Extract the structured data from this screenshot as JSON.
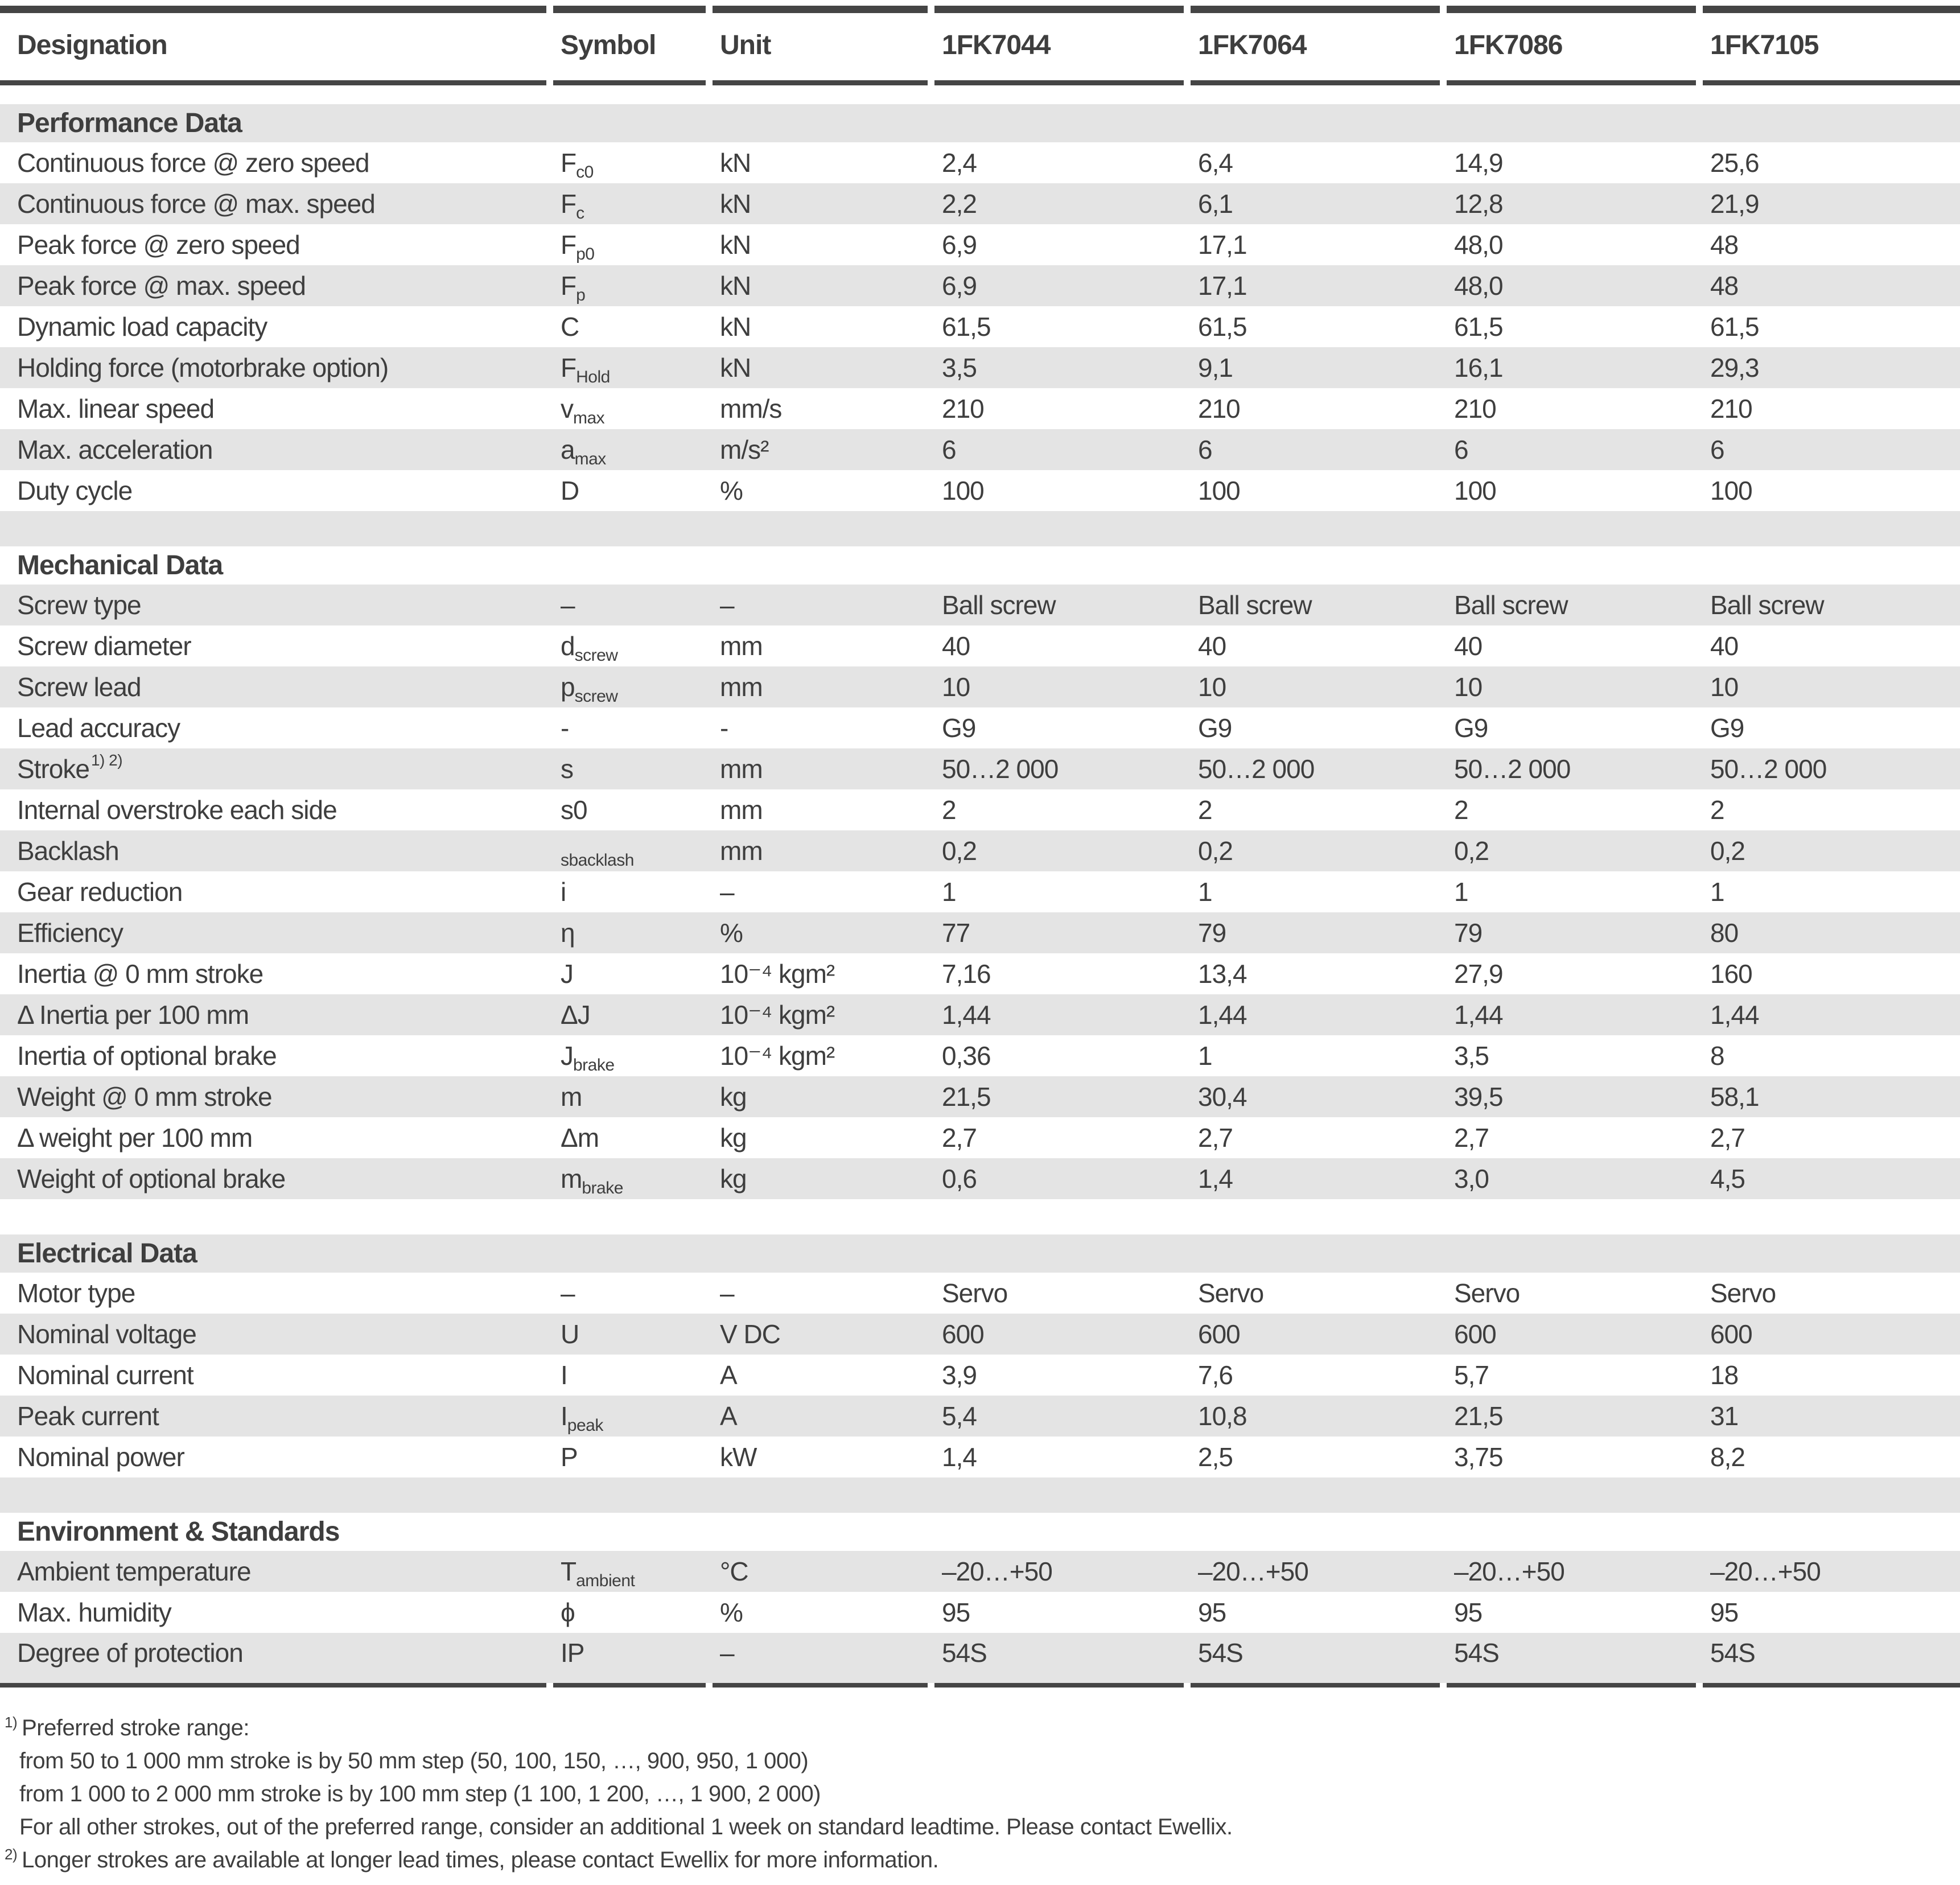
{
  "colors": {
    "rule_dark": "#454545",
    "row_stripe": "#e4e4e4",
    "text": "#3e3e3e"
  },
  "header": {
    "columns": [
      "Designation",
      "Symbol",
      "Unit",
      "1FK7044",
      "1FK7064",
      "1FK7086",
      "1FK7105"
    ]
  },
  "table": {
    "sections": [
      {
        "title": "Performance Data",
        "rows": [
          {
            "label": "Continuous force @ zero speed",
            "symbol": "F",
            "symbol_sub": "c0",
            "unit": "kN",
            "values": [
              "2,4",
              "6,4",
              "14,9",
              "25,6"
            ]
          },
          {
            "label": "Continuous force @ max. speed",
            "symbol": "F",
            "symbol_sub": "c",
            "unit": "kN",
            "values": [
              "2,2",
              "6,1",
              "12,8",
              "21,9"
            ]
          },
          {
            "label": "Peak force @ zero speed",
            "symbol": "F",
            "symbol_sub": "p0",
            "unit": "kN",
            "values": [
              "6,9",
              "17,1",
              "48,0",
              "48"
            ]
          },
          {
            "label": "Peak force @ max. speed",
            "symbol": "F",
            "symbol_sub": "p",
            "unit": "kN",
            "values": [
              "6,9",
              "17,1",
              "48,0",
              "48"
            ]
          },
          {
            "label": "Dynamic load capacity",
            "symbol": "C",
            "unit": "kN",
            "values": [
              "61,5",
              "61,5",
              "61,5",
              "61,5"
            ]
          },
          {
            "label": "Holding force (motorbrake option)",
            "symbol": "F",
            "symbol_sub": "Hold",
            "unit": "kN",
            "values": [
              "3,5",
              "9,1",
              "16,1",
              "29,3"
            ]
          },
          {
            "label": "Max. linear speed",
            "symbol": "v",
            "symbol_sub": "max",
            "unit": "mm/s",
            "values": [
              "210",
              "210",
              "210",
              "210"
            ]
          },
          {
            "label": "Max. acceleration",
            "symbol": "a",
            "symbol_sub": "max",
            "unit": "m/s²",
            "values": [
              "6",
              "6",
              "6",
              "6"
            ]
          },
          {
            "label": "Duty cycle",
            "symbol": "D",
            "unit": "%",
            "values": [
              "100",
              "100",
              "100",
              "100"
            ]
          }
        ]
      },
      {
        "title": "Mechanical Data",
        "rows": [
          {
            "label": "Screw type",
            "symbol": "–",
            "unit": "–",
            "values": [
              "Ball screw",
              "Ball screw",
              "Ball screw",
              "Ball screw"
            ]
          },
          {
            "label": "Screw diameter",
            "symbol": "d",
            "symbol_sub": "screw",
            "unit": "mm",
            "values": [
              "40",
              "40",
              "40",
              "40"
            ]
          },
          {
            "label": "Screw lead",
            "symbol": "p",
            "symbol_sub": "screw",
            "unit": "mm",
            "values": [
              "10",
              "10",
              "10",
              "10"
            ]
          },
          {
            "label": "Lead accuracy",
            "symbol": "-",
            "unit": "-",
            "values": [
              "G9",
              "G9",
              "G9",
              "G9"
            ]
          },
          {
            "label": "Stroke",
            "label_sup": "1) 2)",
            "symbol": "s",
            "unit": "mm",
            "values": [
              "50…2 000",
              "50…2 000",
              "50…2 000",
              "50…2 000"
            ]
          },
          {
            "label": "Internal overstroke each side",
            "symbol": "s0",
            "unit": "mm",
            "values": [
              "2",
              "2",
              "2",
              "2"
            ]
          },
          {
            "label": "Backlash",
            "symbol": "",
            "symbol_sub": "sbacklash",
            "unit": "mm",
            "values": [
              "0,2",
              "0,2",
              "0,2",
              "0,2"
            ]
          },
          {
            "label": "Gear reduction",
            "symbol": "i",
            "unit": "–",
            "values": [
              "1",
              "1",
              "1",
              "1"
            ]
          },
          {
            "label": "Efficiency",
            "symbol": "η",
            "unit": "%",
            "values": [
              "77",
              "79",
              "79",
              "80"
            ]
          },
          {
            "label": "Inertia @ 0 mm stroke",
            "symbol": "J",
            "unit": "10⁻⁴ kgm²",
            "values": [
              "7,16",
              "13,4",
              "27,9",
              "160"
            ]
          },
          {
            "label": "Δ Inertia per 100 mm",
            "symbol": "ΔJ",
            "unit": "10⁻⁴ kgm²",
            "values": [
              "1,44",
              "1,44",
              "1,44",
              "1,44"
            ]
          },
          {
            "label": "Inertia of optional brake",
            "symbol": "J",
            "symbol_sub": "brake",
            "unit": "10⁻⁴ kgm²",
            "values": [
              "0,36",
              "1",
              "3,5",
              "8"
            ]
          },
          {
            "label": "Weight @ 0 mm stroke",
            "symbol": "m",
            "unit": "kg",
            "values": [
              "21,5",
              "30,4",
              "39,5",
              "58,1"
            ]
          },
          {
            "label": "Δ weight per 100 mm",
            "symbol": "Δm",
            "unit": "kg",
            "values": [
              "2,7",
              "2,7",
              "2,7",
              "2,7"
            ]
          },
          {
            "label": "Weight of optional brake",
            "symbol": "m",
            "symbol_sub": "brake",
            "unit": "kg",
            "values": [
              "0,6",
              "1,4",
              "3,0",
              "4,5"
            ]
          }
        ]
      },
      {
        "title": "Electrical Data",
        "rows": [
          {
            "label": "Motor type",
            "symbol": "–",
            "unit": "–",
            "values": [
              "Servo",
              "Servo",
              "Servo",
              "Servo"
            ]
          },
          {
            "label": "Nominal voltage",
            "symbol": "U",
            "unit": "V DC",
            "values": [
              "600",
              "600",
              "600",
              "600"
            ]
          },
          {
            "label": "Nominal current",
            "symbol": "I",
            "unit": "A",
            "values": [
              "3,9",
              "7,6",
              "5,7",
              "18"
            ]
          },
          {
            "label": "Peak current",
            "symbol": "I",
            "symbol_sub": "peak",
            "unit": "A",
            "values": [
              "5,4",
              "10,8",
              "21,5",
              "31"
            ]
          },
          {
            "label": "Nominal power",
            "symbol": "P",
            "unit": "kW",
            "values": [
              "1,4",
              "2,5",
              "3,75",
              "8,2"
            ]
          }
        ]
      },
      {
        "title": "Environment & Standards",
        "rows": [
          {
            "label": "Ambient temperature",
            "symbol": "T",
            "symbol_sub": "ambient",
            "unit": "°C",
            "values": [
              "–20…+50",
              "–20…+50",
              "–20…+50",
              "–20…+50"
            ]
          },
          {
            "label": "Max. humidity",
            "symbol": "ϕ",
            "unit": "%",
            "values": [
              "95",
              "95",
              "95",
              "95"
            ]
          },
          {
            "label": "Degree of protection",
            "symbol": "IP",
            "unit": "–",
            "values": [
              "54S",
              "54S",
              "54S",
              "54S"
            ]
          }
        ]
      }
    ]
  },
  "footnotes": [
    {
      "sup": "1)",
      "text": "Preferred stroke range:",
      "indent": false
    },
    {
      "sup": "",
      "text": "from 50 to 1 000 mm stroke is by 50 mm step (50, 100, 150, …, 900, 950, 1 000)",
      "indent": true
    },
    {
      "sup": "",
      "text": "from 1 000 to 2 000 mm stroke is by 100 mm step (1 100, 1 200, …, 1 900, 2 000)",
      "indent": true
    },
    {
      "sup": "",
      "text": "For all other strokes, out of the preferred range, consider an additional 1 week on standard leadtime. Please contact Ewellix.",
      "indent": true
    },
    {
      "sup": "2)",
      "text": "Longer strokes are available at longer lead times, please contact Ewellix for more information.",
      "indent": false
    }
  ]
}
